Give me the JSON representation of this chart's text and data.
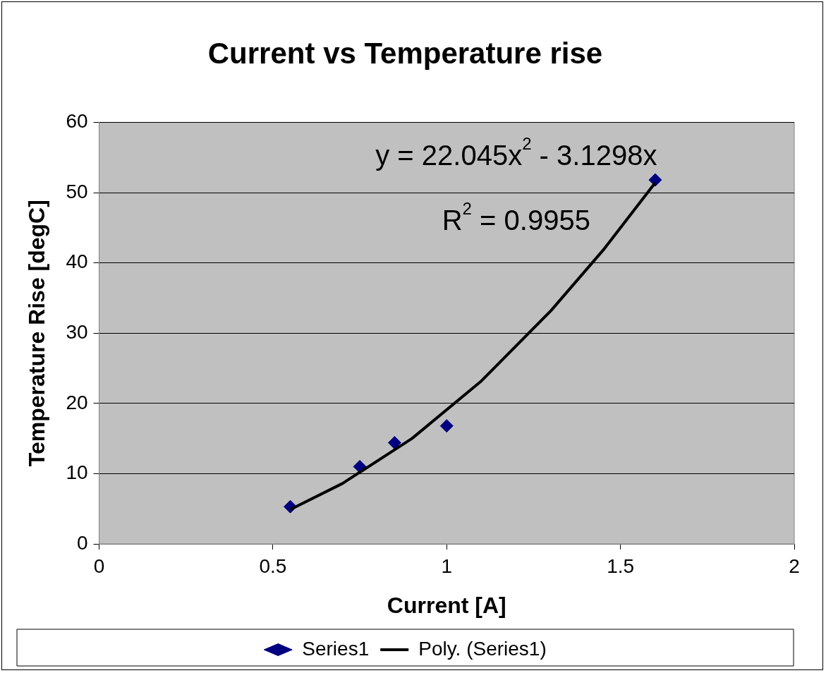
{
  "chart_data": {
    "type": "scatter",
    "title": "Current vs Temperature rise",
    "xlabel": "Current [A]",
    "ylabel": "Temperature Rise [degC]",
    "xlim": [
      0,
      2
    ],
    "xticks": [
      0,
      0.5,
      1,
      1.5,
      2
    ],
    "ylim": [
      0,
      60
    ],
    "yticks": [
      0,
      10,
      20,
      30,
      40,
      50,
      60
    ],
    "grid": "y",
    "legend": "bottom",
    "annotations": [
      "y = 22.045x$^{2}$ - 3.1298x",
      "R$^{2}$ = 0.9955"
    ],
    "series": [
      {
        "name": "Series1",
        "marker": "diamond",
        "color": "#000080",
        "x": [
          0.55,
          0.75,
          0.85,
          1.0,
          1.6
        ],
        "values": [
          5.3,
          11.0,
          14.4,
          16.8,
          51.8
        ]
      },
      {
        "name": "Poly. (Series1)",
        "type": "line",
        "marker": "none",
        "line_style": "solid",
        "color": "#000000",
        "x": [
          0.55,
          0.7,
          0.9,
          1.1,
          1.3,
          1.45,
          1.6
        ],
        "values": [
          4.9,
          8.6,
          15.0,
          23.2,
          33.2,
          41.8,
          51.4
        ]
      }
    ]
  }
}
